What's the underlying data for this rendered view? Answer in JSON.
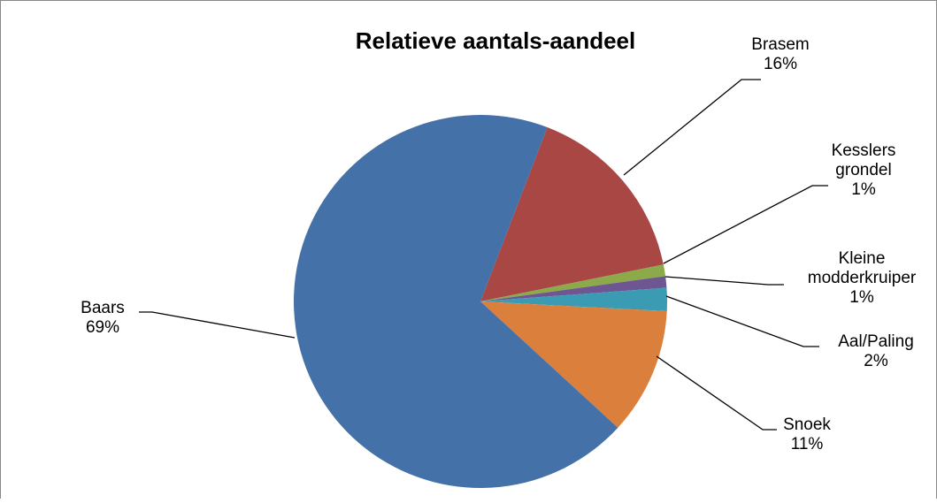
{
  "chart_data": {
    "type": "pie",
    "title": "Relatieve aantals-aandeel",
    "start_angle_deg": 21,
    "slices": [
      {
        "name": "Brasem",
        "value": 16,
        "label_lines": [
          "Brasem",
          "16%"
        ],
        "color": "#A84744"
      },
      {
        "name": "Kesslers grondel",
        "value": 1,
        "label_lines": [
          "Kesslers",
          "grondel",
          "1%"
        ],
        "color": "#8CAA4A"
      },
      {
        "name": "Kleine modderkruiper",
        "value": 1,
        "label_lines": [
          "Kleine",
          "modderkruiper",
          "1%"
        ],
        "color": "#6E5693"
      },
      {
        "name": "Aal/Paling",
        "value": 2,
        "label_lines": [
          "Aal/Paling",
          "2%"
        ],
        "color": "#3A9BB2"
      },
      {
        "name": "Snoek",
        "value": 11,
        "label_lines": [
          "Snoek",
          "11%"
        ],
        "color": "#DA803C"
      },
      {
        "name": "Baars",
        "value": 69,
        "label_lines": [
          "Baars",
          "69%"
        ],
        "color": "#4471A7"
      }
    ],
    "legend": "none"
  }
}
